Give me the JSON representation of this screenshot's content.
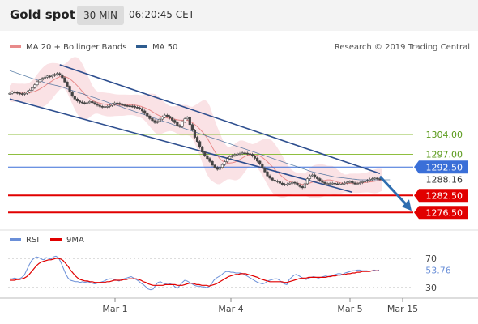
{
  "header": {
    "title": "Gold spot",
    "interval": "30 MIN",
    "time": "06:20:45 CET"
  },
  "colors": {
    "ma20": "#e88a8a",
    "ma50": "#2e5c8f",
    "band": "#f8d8dc",
    "channel": "#2e4f8f",
    "green_level": "#8fbf3f",
    "green_text": "#5a9a1a",
    "blue_level": "#3a6fd8",
    "red_level": "#e10000",
    "candle_up": "#444444",
    "candle_down": "#444444",
    "rsi": "#6a8fd8",
    "rsi_ma": "#e10000",
    "arrow": "#2e6db0"
  },
  "chart_data": [
    {
      "type": "line",
      "name": "price",
      "legend": [
        {
          "label": "MA 20 + Bollinger Bands",
          "color": "#e88a8a"
        },
        {
          "label": "MA 50",
          "color": "#2e5c8f"
        }
      ],
      "watermark": "Research © 2019 Trading Central",
      "x_ticks": [
        "Mar 1",
        "Mar 4",
        "Mar 5",
        "Mar 15"
      ],
      "ylim": [
        1272,
        1332
      ],
      "levels": [
        {
          "value": 1304.0,
          "label": "1304.00",
          "kind": "green"
        },
        {
          "value": 1297.0,
          "label": "1297.00",
          "kind": "green"
        },
        {
          "value": 1292.5,
          "label": "1292.50",
          "kind": "blue"
        },
        {
          "value": 1288.16,
          "label": "1288.16",
          "kind": "current"
        },
        {
          "value": 1282.5,
          "label": "1282.50",
          "kind": "red"
        },
        {
          "value": 1276.5,
          "label": "1276.50",
          "kind": "red"
        }
      ],
      "close": [
        1318.5,
        1319,
        1318.8,
        1318.6,
        1318.4,
        1318.2,
        1318.5,
        1319,
        1319.6,
        1320.5,
        1321.5,
        1322.6,
        1323.2,
        1323.8,
        1324.2,
        1324.6,
        1324.4,
        1324.8,
        1325.2,
        1325.5,
        1325,
        1324,
        1322.5,
        1321,
        1319,
        1317.5,
        1316.5,
        1315.8,
        1315.4,
        1315.2,
        1315,
        1315.2,
        1315.6,
        1315.2,
        1314.8,
        1314.3,
        1313.9,
        1313.7,
        1313.8,
        1313.9,
        1314.2,
        1314.6,
        1315.1,
        1315,
        1314.6,
        1314.4,
        1314.2,
        1314.1,
        1314,
        1313.9,
        1313.6,
        1313.4,
        1313.1,
        1312.3,
        1311.4,
        1310.5,
        1309.6,
        1308.9,
        1308.2,
        1308.6,
        1309.4,
        1310.2,
        1310.8,
        1310.4,
        1309.8,
        1309,
        1308.2,
        1307.2,
        1306.8,
        1308.5,
        1309.5,
        1310,
        1307.5,
        1305.5,
        1303,
        1301.5,
        1299.5,
        1297.8,
        1296.5,
        1295.5,
        1294.5,
        1293.2,
        1292.4,
        1291.7,
        1292.4,
        1293.4,
        1294.4,
        1295.5,
        1296.2,
        1296.6,
        1296.9,
        1297.1,
        1297.3,
        1297.5,
        1297.4,
        1297.2,
        1297,
        1296.4,
        1295.6,
        1294.6,
        1293.6,
        1292.2,
        1290.8,
        1289.4,
        1288.6,
        1287.9,
        1287.6,
        1287.3,
        1286.8,
        1286.4,
        1286.2,
        1286.5,
        1286.8,
        1287.1,
        1286.8,
        1286.2,
        1285.6,
        1285.2,
        1286.6,
        1288.4,
        1289.4,
        1289.7,
        1288.9,
        1288.4,
        1287.7,
        1287.1,
        1286.7,
        1286.7,
        1286.7,
        1286.8,
        1286.6,
        1286.5,
        1286.5,
        1286.6,
        1286.9,
        1287.2,
        1287.4,
        1286.9,
        1286.5,
        1286.7,
        1287,
        1287.3,
        1287.5,
        1287.8,
        1288.2,
        1288.4,
        1288.6,
        1288.4,
        1288.3,
        1288.2
      ],
      "ma50": [
        1326.5,
        1326.2,
        1325.9,
        1325.6,
        1325.3,
        1325,
        1324.7,
        1324.4,
        1324.1,
        1323.8,
        1323.5,
        1323.2,
        1322.9,
        1322.6,
        1322.3,
        1322,
        1321.8,
        1321.6,
        1321.4,
        1321.2,
        1321,
        1320.7,
        1320.4,
        1320.1,
        1319.8,
        1319.5,
        1319.2,
        1318.9,
        1318.6,
        1318.4,
        1318.1,
        1317.8,
        1317.5,
        1317.2,
        1316.9,
        1316.6,
        1316.3,
        1316,
        1315.7,
        1315.4,
        1315.1,
        1314.8,
        1314.5,
        1314.2,
        1313.9,
        1313.6,
        1313.3,
        1313,
        1312.7,
        1312.4,
        1312.1,
        1311.8,
        1311.5,
        1311.2,
        1310.9,
        1310.6,
        1310.3,
        1310,
        1309.7,
        1309.4,
        1309.1,
        1308.8,
        1308.5,
        1308.2,
        1307.9,
        1307.6,
        1307.3,
        1307,
        1306.7,
        1306.4,
        1306.1,
        1305.8,
        1305.5,
        1305.2,
        1304.9,
        1304.6,
        1304.3,
        1304,
        1303.7,
        1303.4,
        1303.1,
        1302.8,
        1302.5,
        1302.2,
        1301.9,
        1301.6,
        1301.3,
        1301,
        1300.7,
        1300.4,
        1300.1,
        1299.8,
        1299.5,
        1299.2,
        1298.9,
        1298.6,
        1298.3,
        1298,
        1297.7,
        1297.4,
        1297.1,
        1296.8,
        1296.5,
        1296.2,
        1295.9,
        1295.6,
        1295.3,
        1295,
        1294.7,
        1294.4,
        1294.1,
        1293.8,
        1293.5,
        1293.2,
        1292.9,
        1292.6,
        1292.3,
        1292,
        1291.7,
        1291.4,
        1291.1,
        1290.8,
        1290.6,
        1290.4,
        1290.2,
        1290,
        1289.8,
        1289.6,
        1289.4,
        1289.2,
        1289,
        1288.9,
        1288.8,
        1288.7,
        1288.6,
        1288.5,
        1288.4,
        1288.3,
        1288.2,
        1288.1,
        1288,
        1288,
        1288,
        1288,
        1288,
        1288,
        1288,
        1288,
        1288,
        1288,
        1288,
        1288,
        1288
      ],
      "channel": [
        {
          "x": [
            0,
            137
          ],
          "y": [
            1316.5,
            1283.6
          ]
        },
        {
          "x": [
            20,
            148
          ],
          "y": [
            1328.6,
            1290.2
          ]
        }
      ],
      "forecast": {
        "x": [
          148,
          160
        ],
        "y": [
          1289.2,
          1276.5
        ]
      }
    },
    {
      "type": "line",
      "name": "rsi_panel",
      "legend": [
        {
          "label": "RSI",
          "color": "#6a8fd8"
        },
        {
          "label": "9MA",
          "color": "#e10000"
        }
      ],
      "ylim": [
        0,
        100
      ],
      "y_ticks": [
        "70",
        "30"
      ],
      "current_rsi": "53.76",
      "rsi": [
        42,
        42,
        43,
        42,
        42,
        44,
        47,
        54,
        61,
        67,
        70,
        72,
        71,
        69,
        68,
        71,
        70,
        69,
        72,
        73,
        71,
        65,
        57,
        49,
        43,
        40,
        39,
        38,
        38,
        37,
        38,
        37,
        38,
        37,
        36,
        35,
        36,
        37,
        38,
        39,
        41,
        42,
        42,
        41,
        40,
        39,
        41,
        42,
        43,
        44,
        45,
        43,
        41,
        39,
        36,
        34,
        31,
        28,
        27,
        28,
        33,
        37,
        38,
        36,
        35,
        36,
        35,
        34,
        31,
        29,
        33,
        37,
        40,
        39,
        37,
        35,
        33,
        32,
        32,
        31,
        31,
        30,
        31,
        35,
        40,
        43,
        45,
        47,
        50,
        52,
        52,
        51,
        51,
        50,
        50,
        50,
        49,
        47,
        45,
        43,
        41,
        39,
        37,
        36,
        35,
        36,
        39,
        40,
        41,
        42,
        42,
        40,
        37,
        35,
        34,
        41,
        44,
        47,
        48,
        46,
        44,
        42,
        41,
        43,
        44,
        45,
        44,
        43,
        44,
        45,
        46,
        45,
        46,
        47,
        48,
        49,
        49,
        48,
        50,
        51,
        52,
        53,
        53,
        54,
        54,
        53,
        53,
        53,
        52,
        53,
        54,
        53,
        54
      ],
      "rsi_ma": [
        40,
        40,
        40,
        41,
        41,
        42,
        43,
        45,
        48,
        52,
        56,
        60,
        63,
        65,
        66,
        67,
        68,
        68,
        69,
        70,
        70,
        69,
        67,
        63,
        59,
        54,
        50,
        46,
        43,
        41,
        40,
        39,
        39,
        38,
        38,
        37,
        37,
        37,
        37,
        37,
        38,
        38,
        39,
        40,
        40,
        40,
        40,
        41,
        41,
        42,
        42,
        42,
        42,
        41,
        40,
        38,
        37,
        35,
        34,
        33,
        33,
        33,
        33,
        33,
        34,
        34,
        34,
        34,
        34,
        33,
        33,
        33,
        34,
        35,
        36,
        36,
        35,
        34,
        34,
        33,
        33,
        33,
        32,
        33,
        34,
        35,
        37,
        39,
        41,
        43,
        45,
        46,
        47,
        48,
        48,
        49,
        49,
        49,
        48,
        47,
        46,
        45,
        44,
        42,
        41,
        40,
        39,
        38,
        38,
        38,
        38,
        38,
        38,
        37,
        37,
        38,
        39,
        40,
        41,
        42,
        43,
        43,
        43,
        44,
        44,
        44,
        44,
        44,
        44,
        44,
        44,
        45,
        45,
        46,
        46,
        47,
        47,
        48,
        48,
        49,
        49,
        50,
        50,
        51,
        51,
        52,
        52,
        52,
        52,
        53,
        53,
        53,
        53
      ]
    }
  ]
}
